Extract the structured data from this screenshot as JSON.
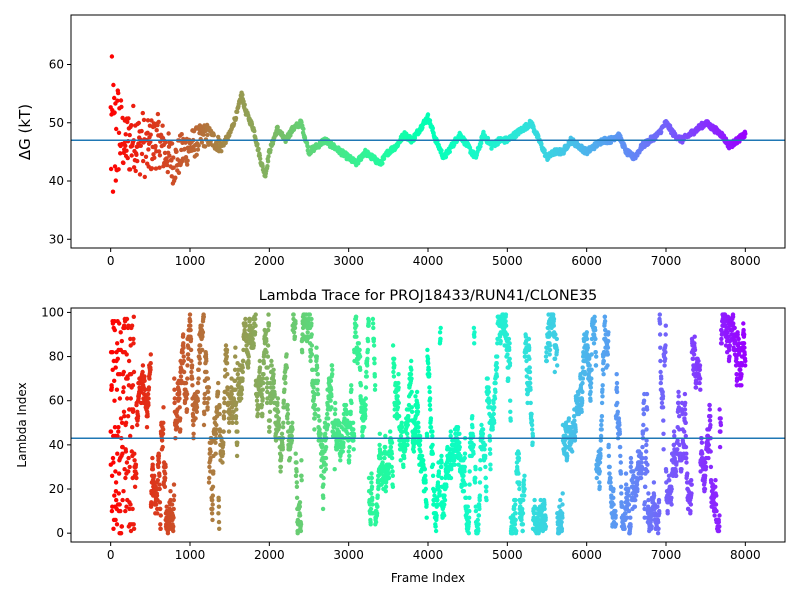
{
  "chart_data": [
    {
      "type": "scatter",
      "title": "",
      "xlabel": "",
      "ylabel": "ΔG (kT)",
      "xlim": [
        -500,
        8500
      ],
      "ylim": [
        28.5,
        68.5
      ],
      "xticks": [
        0,
        1000,
        2000,
        3000,
        4000,
        5000,
        6000,
        7000,
        8000
      ],
      "yticks": [
        30,
        40,
        50,
        60
      ],
      "hline": 47.0,
      "hline_color": "#1f77b4",
      "colormap": "rainbow (red at frame 0 → violet at frame 8000)",
      "grid": false,
      "trace": {
        "x": [
          0,
          50,
          100,
          150,
          200,
          250,
          300,
          350,
          400,
          450,
          500,
          600,
          700,
          800,
          900,
          1000,
          1100,
          1200,
          1300,
          1400,
          1500,
          1600,
          1650,
          1700,
          1800,
          1900,
          1950,
          2000,
          2100,
          2200,
          2300,
          2400,
          2500,
          2600,
          2700,
          2800,
          2900,
          3000,
          3100,
          3200,
          3300,
          3400,
          3500,
          3600,
          3700,
          3800,
          3900,
          4000,
          4100,
          4200,
          4300,
          4400,
          4500,
          4600,
          4700,
          4800,
          4900,
          5000,
          5100,
          5200,
          5300,
          5400,
          5500,
          5600,
          5700,
          5800,
          5900,
          6000,
          6100,
          6200,
          6300,
          6400,
          6500,
          6600,
          6700,
          6800,
          6900,
          7000,
          7100,
          7200,
          7300,
          7400,
          7500,
          7600,
          7700,
          7800,
          7900,
          8000
        ],
        "y": [
          48,
          46,
          49,
          47,
          46,
          47,
          48,
          46,
          47,
          45,
          46,
          47,
          45,
          43,
          45,
          46,
          47,
          48,
          47,
          46,
          48,
          52,
          55,
          52,
          49,
          43,
          41,
          45,
          49,
          47,
          49,
          50,
          45,
          46,
          47,
          46,
          45,
          44,
          43,
          45,
          44,
          43,
          45,
          46,
          48,
          47,
          49,
          51,
          47,
          44,
          46,
          48,
          46,
          44,
          48,
          46,
          47,
          47,
          48,
          49,
          50,
          47,
          44,
          45,
          45,
          47,
          46,
          45,
          46,
          47,
          47,
          48,
          45,
          44,
          46,
          47,
          48,
          50,
          48,
          47,
          48,
          49,
          50,
          49,
          48,
          46,
          47,
          48
        ]
      }
    },
    {
      "type": "scatter",
      "title": "Lambda Trace for PROJ18433/RUN41/CLONE35",
      "xlabel": "Frame Index",
      "ylabel": "Lambda Index",
      "xlim": [
        -500,
        8500
      ],
      "ylim": [
        -4,
        102
      ],
      "xticks": [
        0,
        1000,
        2000,
        3000,
        4000,
        5000,
        6000,
        7000,
        8000
      ],
      "yticks": [
        0,
        20,
        40,
        60,
        80,
        100
      ],
      "hline": 43.0,
      "hline_color": "#1f77b4",
      "colormap": "rainbow (red at frame 0 → violet at frame 8000)",
      "grid": false,
      "lambda_range": [
        0,
        99
      ],
      "frame_range": [
        0,
        8000
      ]
    }
  ]
}
